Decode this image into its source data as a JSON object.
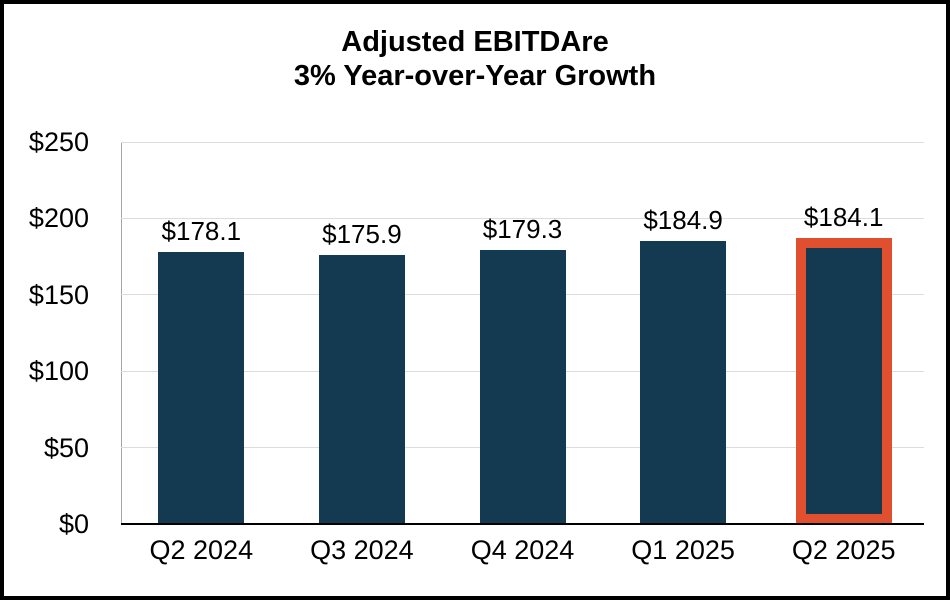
{
  "chart_data": {
    "type": "bar",
    "title": "Adjusted EBITDAre",
    "subtitle": "3% Year-over-Year Growth",
    "categories": [
      "Q2 2024",
      "Q3 2024",
      "Q4 2024",
      "Q1 2025",
      "Q2 2025"
    ],
    "values": [
      178.1,
      175.9,
      179.3,
      184.9,
      184.1
    ],
    "data_labels": [
      "$178.1",
      "$175.9",
      "$179.3",
      "$184.9",
      "$184.1"
    ],
    "ylim": [
      0,
      250
    ],
    "yticks": [
      0,
      50,
      100,
      150,
      200,
      250
    ],
    "ytick_labels": [
      "$0",
      "$50",
      "$100",
      "$150",
      "$200",
      "$250"
    ],
    "grid": true,
    "legend": "none",
    "highlight_index": 4,
    "colors": {
      "bar": "#143A52",
      "highlight_outline": "#E0502F",
      "gridline": "#DCDCDC",
      "axis_line": "#A6A6A6",
      "baseline": "#000000",
      "text": "#000000",
      "frame_border": "#000000",
      "background": "#FFFFFF"
    }
  }
}
